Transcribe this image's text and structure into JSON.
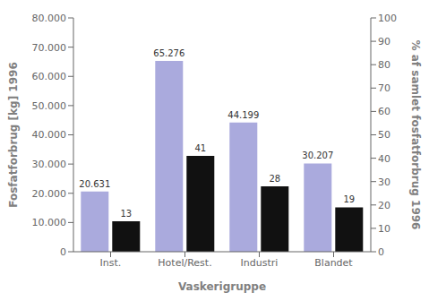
{
  "chart_data": {
    "type": "bar",
    "categories": [
      "Inst.",
      "Hotel/Rest.",
      "Industri",
      "Blandet"
    ],
    "series": [
      {
        "color": "#aaaadd",
        "values": [
          20631,
          65276,
          44199,
          30207
        ],
        "value_labels": [
          "20.631",
          "65.276",
          "44.199",
          "30.207"
        ],
        "axis": "y"
      },
      {
        "color": "#111111",
        "values": [
          13,
          41,
          28,
          19
        ],
        "axis": "y2"
      }
    ],
    "xlabel": "Vaskerigruppe",
    "ylabel": "Fosfatforbrug [kg] 1996",
    "y2label": "% af samlet fosfatforbrug 1996",
    "ylim": [
      0,
      80000
    ],
    "yticks": [
      0,
      {
        "value": 10000,
        "label": "10.000"
      },
      {
        "value": 20000,
        "label": "20.000"
      },
      {
        "value": 30000,
        "label": "30.000"
      },
      {
        "value": 40000,
        "label": "40.000"
      },
      {
        "value": 50000,
        "label": "50.000"
      },
      {
        "value": 60000,
        "label": "60.000"
      },
      {
        "value": 70000,
        "label": "70.000"
      },
      {
        "value": 80000,
        "label": "80.000"
      }
    ],
    "y2lim": [
      0,
      100
    ],
    "y2ticks": [
      0,
      10,
      20,
      30,
      40,
      50,
      60,
      70,
      80,
      90,
      100
    ],
    "data_labels": true,
    "grid": false
  }
}
